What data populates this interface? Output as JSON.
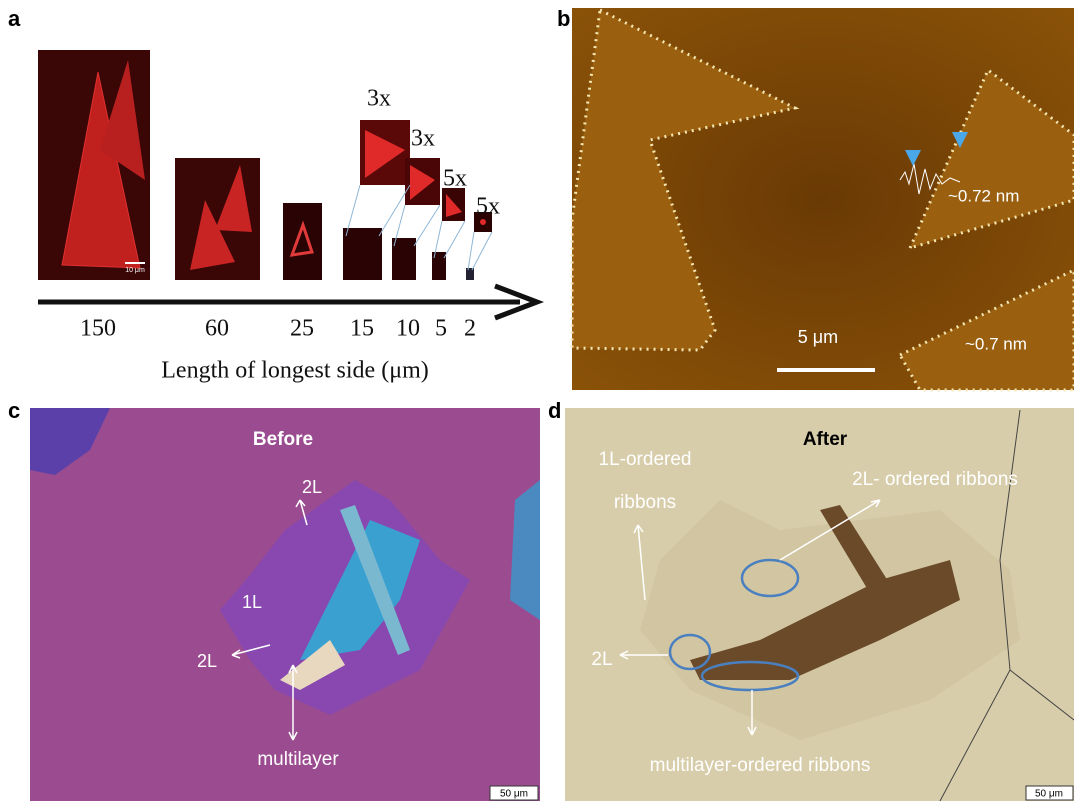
{
  "panel_a": {
    "label": "a",
    "magnifications": [
      "3x",
      "3x",
      "5x",
      "5x"
    ],
    "scale_bar": "10 μm",
    "sizes": [
      "150",
      "60",
      "25",
      "15",
      "10",
      "5",
      "2"
    ],
    "axis_label": "Length of longest side (μm)"
  },
  "panel_b": {
    "label": "b",
    "scale_bar": "5 μm",
    "annotations": [
      "~0.72 nm",
      "~0.7 nm"
    ]
  },
  "panel_c": {
    "label": "c",
    "title": "Before",
    "annotations": [
      "2L",
      "1L",
      "2L",
      "multilayer"
    ],
    "scale_bar": "50 μm"
  },
  "panel_d": {
    "label": "d",
    "title": "After",
    "annotations": [
      "1L-ordered",
      "ribbons",
      "2L- ordered ribbons",
      "2L",
      "multilayer-ordered ribbons"
    ],
    "scale_bar": "50 μm"
  }
}
